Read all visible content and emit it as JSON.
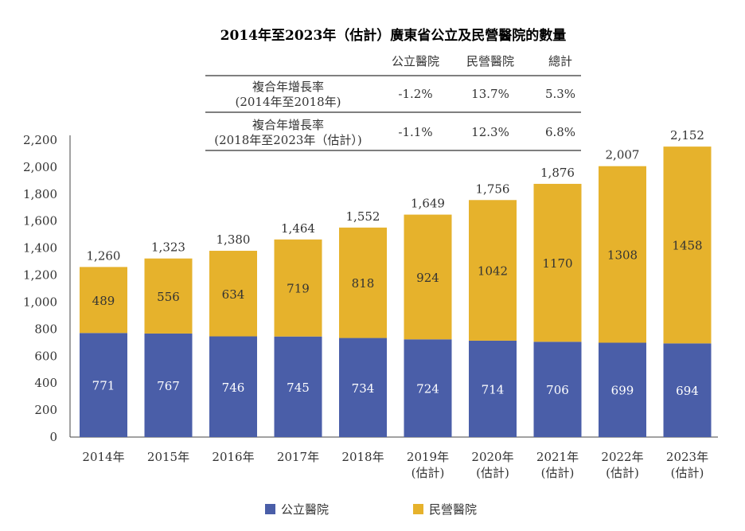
{
  "chart_data": {
    "type": "bar",
    "stacked": true,
    "title": "2014年至2023年（估計）廣東省公立及民營醫院的數量",
    "categories": [
      [
        "2014年"
      ],
      [
        "2015年"
      ],
      [
        "2016年"
      ],
      [
        "2017年"
      ],
      [
        "2018年"
      ],
      [
        "2019年",
        "(估計)"
      ],
      [
        "2020年",
        "(估計)"
      ],
      [
        "2021年",
        "(估計)"
      ],
      [
        "2022年",
        "(估計)"
      ],
      [
        "2023年",
        "(估計)"
      ]
    ],
    "series": [
      {
        "name": "公立醫院",
        "color": "#4a5ea8",
        "values": [
          771,
          767,
          746,
          745,
          734,
          724,
          714,
          706,
          699,
          694
        ]
      },
      {
        "name": "民營醫院",
        "color": "#e6b22c",
        "values": [
          489,
          556,
          634,
          719,
          818,
          924,
          1042,
          1170,
          1308,
          1458
        ]
      }
    ],
    "totals": [
      1260,
      1323,
      1380,
      1464,
      1552,
      1649,
      1756,
      1876,
      2007,
      2152
    ],
    "ylim": [
      0,
      2200
    ],
    "yticks": [
      "0",
      "200",
      "400",
      "600",
      "800",
      "1,000",
      "1,200",
      "1,400",
      "1,600",
      "1,800",
      "2,000",
      "2,200"
    ],
    "grid": false,
    "legend_position": "bottom",
    "cagr_table": {
      "headers": [
        "公立醫院",
        "民營醫院",
        "總計"
      ],
      "rows": [
        {
          "label": [
            "複合年增長率",
            "(2014年至2018年)"
          ],
          "values": [
            "-1.2%",
            "13.7%",
            "5.3%"
          ]
        },
        {
          "label": [
            "複合年增長率",
            "(2018年至2023年（估計）)"
          ],
          "values": [
            "-1.1%",
            "12.3%",
            "6.8%"
          ]
        }
      ]
    }
  }
}
